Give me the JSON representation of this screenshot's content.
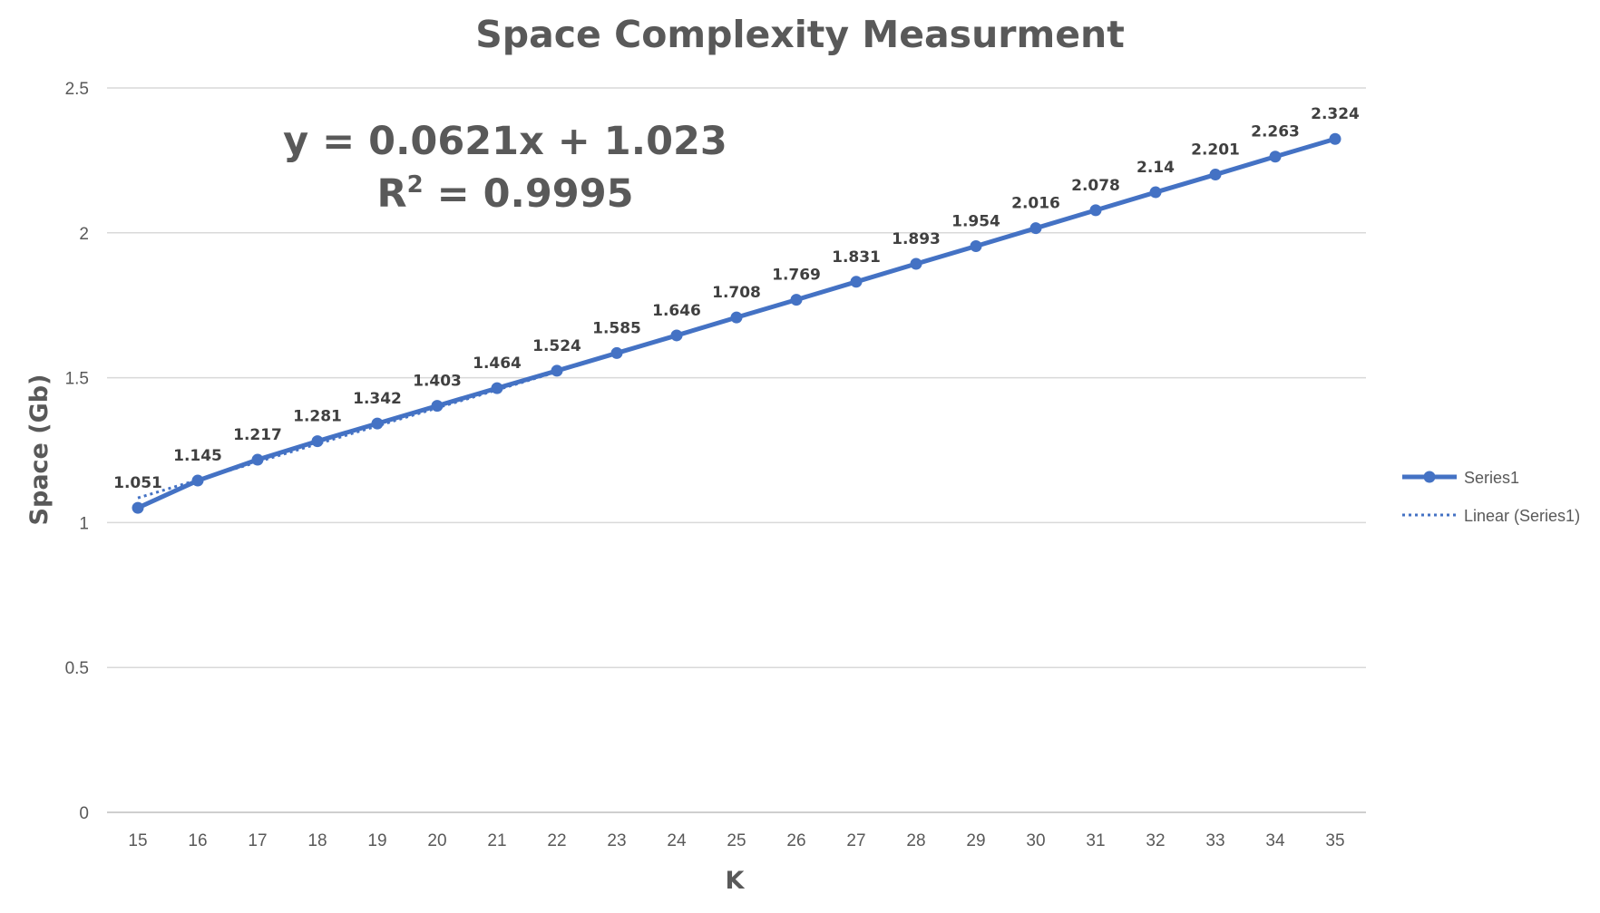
{
  "chart_data": {
    "type": "line",
    "title": "Space Complexity Measurment",
    "xlabel": "K",
    "ylabel": "Space (Gb)",
    "ylim": [
      0,
      2.5
    ],
    "y_ticks": [
      "0",
      "0.5",
      "1",
      "1.5",
      "2",
      "2.5"
    ],
    "x": [
      15,
      16,
      17,
      18,
      19,
      20,
      21,
      22,
      23,
      24,
      25,
      26,
      27,
      28,
      29,
      30,
      31,
      32,
      33,
      34,
      35
    ],
    "x_ticks": [
      "15",
      "16",
      "17",
      "18",
      "19",
      "20",
      "21",
      "22",
      "23",
      "24",
      "25",
      "26",
      "27",
      "28",
      "29",
      "30",
      "31",
      "32",
      "33",
      "34",
      "35"
    ],
    "series": [
      {
        "name": "Series1",
        "values": [
          1.051,
          1.145,
          1.217,
          1.281,
          1.342,
          1.403,
          1.464,
          1.524,
          1.585,
          1.646,
          1.708,
          1.769,
          1.831,
          1.893,
          1.954,
          2.016,
          2.078,
          2.14,
          2.201,
          2.263,
          2.324
        ],
        "labels": [
          "1.051",
          "1.145",
          "1.217",
          "1.281",
          "1.342",
          "1.403",
          "1.464",
          "1.524",
          "1.585",
          "1.646",
          "1.708",
          "1.769",
          "1.831",
          "1.893",
          "1.954",
          "2.016",
          "2.078",
          "2.14",
          "2.201",
          "2.263",
          "2.324"
        ],
        "color": "#4472C4"
      }
    ],
    "trendline": {
      "name": "Linear (Series1)",
      "color": "#4472C4",
      "x_range": [
        15,
        22
      ],
      "equation": "y = 0.0621x + 1.023",
      "r_squared_label": "R",
      "r_squared_sup": "2",
      "r_squared_value": " = 0.9995"
    },
    "grid": true,
    "legend_position": "right"
  }
}
